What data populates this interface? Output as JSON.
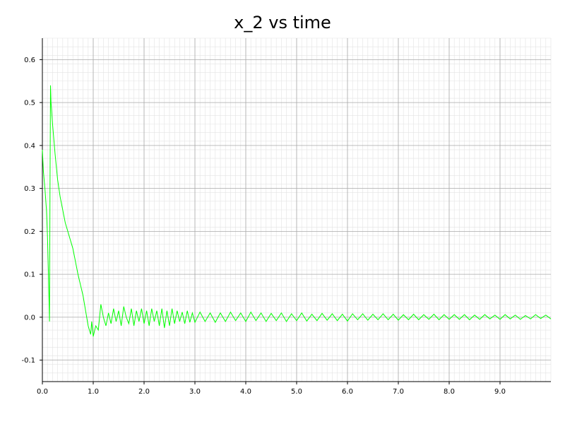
{
  "chart_data": {
    "type": "line",
    "title": "x_2 vs time",
    "xlabel": "",
    "ylabel": "",
    "xlim": [
      0,
      10
    ],
    "ylim": [
      -0.15,
      0.65
    ],
    "x_ticks": [
      0.0,
      1.0,
      2.0,
      3.0,
      4.0,
      5.0,
      6.0,
      7.0,
      8.0,
      9.0
    ],
    "x_tick_labels": [
      "0.0",
      "1.0",
      "2.0",
      "3.0",
      "4.0",
      "5.0",
      "6.0",
      "7.0",
      "8.0",
      "9.0"
    ],
    "y_ticks": [
      -0.1,
      0.0,
      0.1,
      0.2,
      0.3,
      0.4,
      0.5,
      0.6
    ],
    "y_tick_labels": [
      "-0.1",
      "0.0",
      "0.1",
      "0.2",
      "0.3",
      "0.4",
      "0.5",
      "0.6"
    ],
    "grid": true,
    "minor_grid": true,
    "series": [
      {
        "color": "#00ff00",
        "x": [
          0.0,
          0.02,
          0.05,
          0.08,
          0.1,
          0.12,
          0.14,
          0.15,
          0.16,
          0.17,
          0.2,
          0.25,
          0.3,
          0.35,
          0.4,
          0.45,
          0.5,
          0.6,
          0.7,
          0.8,
          0.9,
          0.95,
          0.97,
          1.0,
          1.02,
          1.05,
          1.1,
          1.15,
          1.2,
          1.25,
          1.3,
          1.35,
          1.4,
          1.45,
          1.5,
          1.55,
          1.6,
          1.65,
          1.7,
          1.75,
          1.8,
          1.85,
          1.9,
          1.95,
          2.0,
          2.05,
          2.1,
          2.15,
          2.2,
          2.25,
          2.3,
          2.35,
          2.4,
          2.45,
          2.5,
          2.55,
          2.6,
          2.65,
          2.7,
          2.75,
          2.8,
          2.85,
          2.9,
          2.95,
          3.0,
          3.1,
          3.2,
          3.3,
          3.4,
          3.5,
          3.6,
          3.7,
          3.8,
          3.9,
          4.0,
          4.1,
          4.2,
          4.3,
          4.4,
          4.5,
          4.6,
          4.7,
          4.8,
          4.9,
          5.0,
          5.1,
          5.2,
          5.3,
          5.4,
          5.5,
          5.6,
          5.7,
          5.8,
          5.9,
          6.0,
          6.1,
          6.2,
          6.3,
          6.4,
          6.5,
          6.6,
          6.7,
          6.8,
          6.9,
          7.0,
          7.1,
          7.2,
          7.3,
          7.4,
          7.5,
          7.6,
          7.7,
          7.8,
          7.9,
          8.0,
          8.1,
          8.2,
          8.3,
          8.4,
          8.5,
          8.6,
          8.7,
          8.8,
          8.9,
          9.0,
          9.1,
          9.2,
          9.3,
          9.4,
          9.5,
          9.6,
          9.7,
          9.8,
          9.9,
          10.0
        ],
        "y": [
          0.39,
          0.34,
          0.3,
          0.25,
          0.19,
          0.1,
          -0.01,
          0.3,
          0.54,
          0.5,
          0.45,
          0.38,
          0.32,
          0.28,
          0.25,
          0.22,
          0.2,
          0.16,
          0.1,
          0.05,
          -0.02,
          -0.04,
          -0.01,
          -0.045,
          -0.035,
          -0.02,
          -0.03,
          0.03,
          0.0,
          -0.02,
          0.01,
          -0.015,
          0.02,
          -0.01,
          0.015,
          -0.02,
          0.025,
          0.0,
          -0.015,
          0.02,
          -0.02,
          0.015,
          -0.01,
          0.02,
          -0.015,
          0.015,
          -0.02,
          0.02,
          -0.01,
          0.015,
          -0.02,
          0.02,
          -0.025,
          0.015,
          -0.02,
          0.02,
          -0.015,
          0.015,
          -0.01,
          0.012,
          -0.015,
          0.015,
          -0.012,
          0.01,
          -0.012,
          0.012,
          -0.01,
          0.01,
          -0.012,
          0.01,
          -0.01,
          0.012,
          -0.008,
          0.01,
          -0.01,
          0.012,
          -0.008,
          0.01,
          -0.01,
          0.009,
          -0.008,
          0.01,
          -0.01,
          0.008,
          -0.008,
          0.01,
          -0.009,
          0.007,
          -0.008,
          0.009,
          -0.007,
          0.008,
          -0.008,
          0.007,
          -0.009,
          0.008,
          -0.006,
          0.008,
          -0.007,
          0.007,
          -0.006,
          0.008,
          -0.006,
          0.007,
          -0.007,
          0.006,
          -0.006,
          0.007,
          -0.006,
          0.006,
          -0.005,
          0.007,
          -0.006,
          0.006,
          -0.005,
          0.006,
          -0.005,
          0.006,
          -0.006,
          0.005,
          -0.005,
          0.006,
          -0.004,
          0.005,
          -0.005,
          0.006,
          -0.004,
          0.005,
          -0.005,
          0.004,
          -0.004,
          0.006,
          -0.003,
          0.005,
          -0.004
        ]
      }
    ]
  }
}
